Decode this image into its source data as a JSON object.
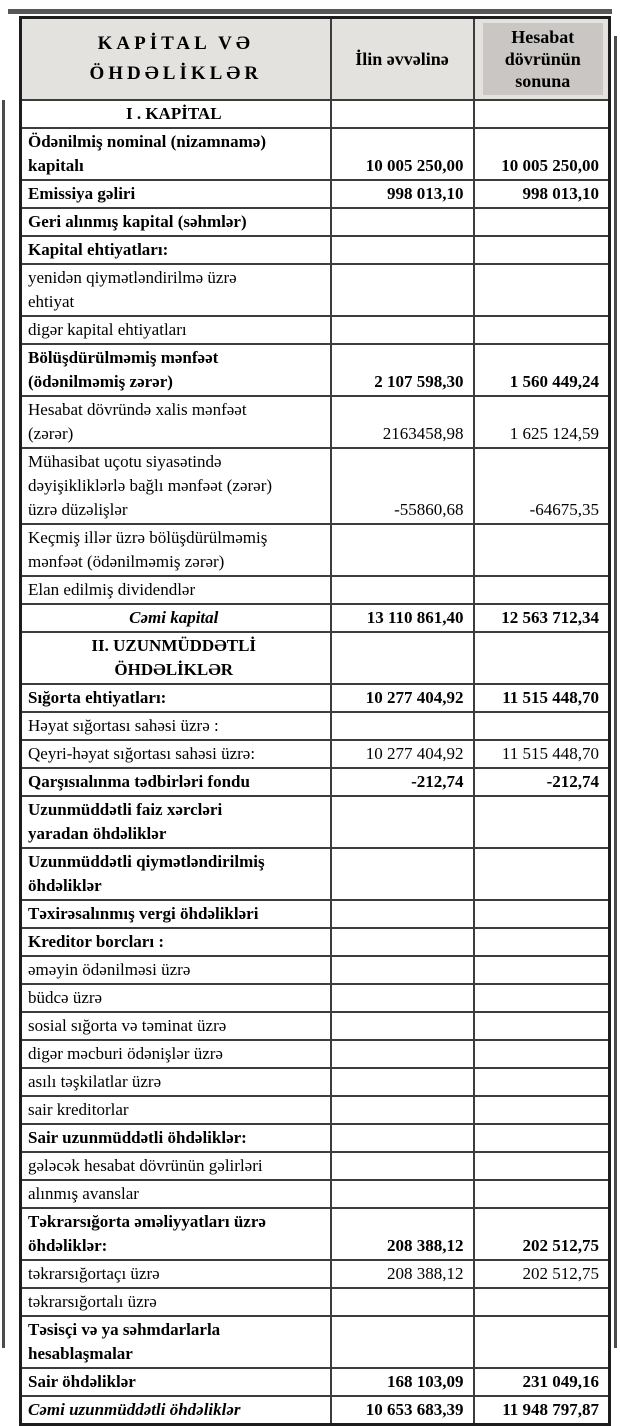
{
  "colors": {
    "header_fill": "#e4e2df",
    "header_highlight_fill": "#c9c6c3",
    "grid_line": "#3c3c3c",
    "outer_border": "#1d1d1d"
  },
  "table": {
    "columns": [
      "KAPİTAL VƏ\nÖHDƏLİKLƏR",
      "İlin əvvəlinə",
      "Hesabat dövrünün sonuna"
    ],
    "rows": [
      {
        "label": "I . KAPİTAL",
        "start": "",
        "end": "",
        "cls": "b c"
      },
      {
        "label": "Ödənilmiş nominal (nizamnamə)\nkapitalı",
        "start": "10 005 250,00",
        "end": "10 005 250,00",
        "cls": "b"
      },
      {
        "label": "Emissiya gəliri",
        "start": "998 013,10",
        "end": "998 013,10",
        "cls": "b"
      },
      {
        "label": "Geri alınmış kapital (səhmlər)",
        "start": "",
        "end": "",
        "cls": "b"
      },
      {
        "label": "Kapital ehtiyatları:",
        "start": "",
        "end": "",
        "cls": "b"
      },
      {
        "label": "yenidən qiymətləndirilmə üzrə\nehtiyat",
        "start": "",
        "end": "",
        "cls": ""
      },
      {
        "label": "digər kapital ehtiyatları",
        "start": "",
        "end": "",
        "cls": ""
      },
      {
        "label": "Bölüşdürülməmiş mənfəət\n(ödənilməmiş zərər)",
        "start": "2 107 598,30",
        "end": "1 560 449,24",
        "cls": "b"
      },
      {
        "label": "Hesabat dövründə xalis mənfəət\n(zərər)",
        "start": "2163458,98",
        "end": "1 625 124,59",
        "cls": ""
      },
      {
        "label": "Mühasibat uçotu siyasətində\ndəyişikliklərlə bağlı mənfəət (zərər)\nüzrə düzəlişlər",
        "start": "-55860,68",
        "end": "-64675,35",
        "cls": ""
      },
      {
        "label": "Keçmiş illər üzrə bölüşdürülməmiş\nmənfəət (ödənilməmiş zərər)",
        "start": "",
        "end": "",
        "cls": ""
      },
      {
        "label": "Elan edilmiş dividendlər",
        "start": "",
        "end": "",
        "cls": ""
      },
      {
        "label": "Cəmi kapital",
        "start": "13 110 861,40",
        "end": "12 563 712,34",
        "cls": "b c i"
      },
      {
        "label": "II. UZUNMÜDDƏTLİ\nÖHDƏLİKLƏR",
        "start": "",
        "end": "",
        "cls": "b c"
      },
      {
        "label": "Sığorta ehtiyatları:",
        "start": "10 277 404,92",
        "end": "11 515 448,70",
        "cls": "b"
      },
      {
        "label": "Həyat sığortası sahəsi üzrə :",
        "start": "",
        "end": "",
        "cls": ""
      },
      {
        "label": "Qeyri-həyat sığortası sahəsi üzrə:",
        "start": "10 277 404,92",
        "end": "11 515 448,70",
        "cls": ""
      },
      {
        "label": "Qarşısıalınma tədbirləri fondu",
        "start": "-212,74",
        "end": "-212,74",
        "cls": "b"
      },
      {
        "label": "Uzunmüddətli faiz xərcləri\nyaradan öhdəliklər",
        "start": "",
        "end": "",
        "cls": "b"
      },
      {
        "label": "Uzunmüddətli qiymətləndirilmiş\nöhdəliklər",
        "start": "",
        "end": "",
        "cls": "b"
      },
      {
        "label": "Təxirəsalınmış vergi öhdəlikləri",
        "start": "",
        "end": "",
        "cls": "b"
      },
      {
        "label": "Kreditor borcları :",
        "start": "",
        "end": "",
        "cls": "b"
      },
      {
        "label": "əməyin ödənilməsi üzrə",
        "start": "",
        "end": "",
        "cls": ""
      },
      {
        "label": "büdcə üzrə",
        "start": "",
        "end": "",
        "cls": ""
      },
      {
        "label": "sosial sığorta və təminat üzrə",
        "start": "",
        "end": "",
        "cls": ""
      },
      {
        "label": "digər məcburi ödənişlər üzrə",
        "start": "",
        "end": "",
        "cls": ""
      },
      {
        "label": "asılı təşkilatlar üzrə",
        "start": "",
        "end": "",
        "cls": ""
      },
      {
        "label": "sair kreditorlar",
        "start": "",
        "end": "",
        "cls": ""
      },
      {
        "label": "Sair uzunmüddətli öhdəliklər:",
        "start": "",
        "end": "",
        "cls": "b"
      },
      {
        "label": "gələcək hesabat dövrünün gəlirləri",
        "start": "",
        "end": "",
        "cls": ""
      },
      {
        "label": "alınmış avanslar",
        "start": "",
        "end": "",
        "cls": ""
      },
      {
        "label": "Təkrarsığorta əməliyyatları üzrə\nöhdəliklər:",
        "start": "208 388,12",
        "end": "202 512,75",
        "cls": "b"
      },
      {
        "label": "təkrarsığortaçı üzrə",
        "start": "208 388,12",
        "end": "202 512,75",
        "cls": ""
      },
      {
        "label": "təkrarsığortalı üzrə",
        "start": "",
        "end": "",
        "cls": ""
      },
      {
        "label": "Təsisçi və ya səhmdarlarla\nhesablaşmalar",
        "start": "",
        "end": "",
        "cls": "b"
      },
      {
        "label": "Sair öhdəliklər",
        "start": "168 103,09",
        "end": "231 049,16",
        "cls": "b"
      },
      {
        "label": "Cəmi uzunmüddətli öhdəliklər",
        "start": "10 653 683,39",
        "end": "11 948 797,87",
        "cls": "b i"
      }
    ]
  }
}
